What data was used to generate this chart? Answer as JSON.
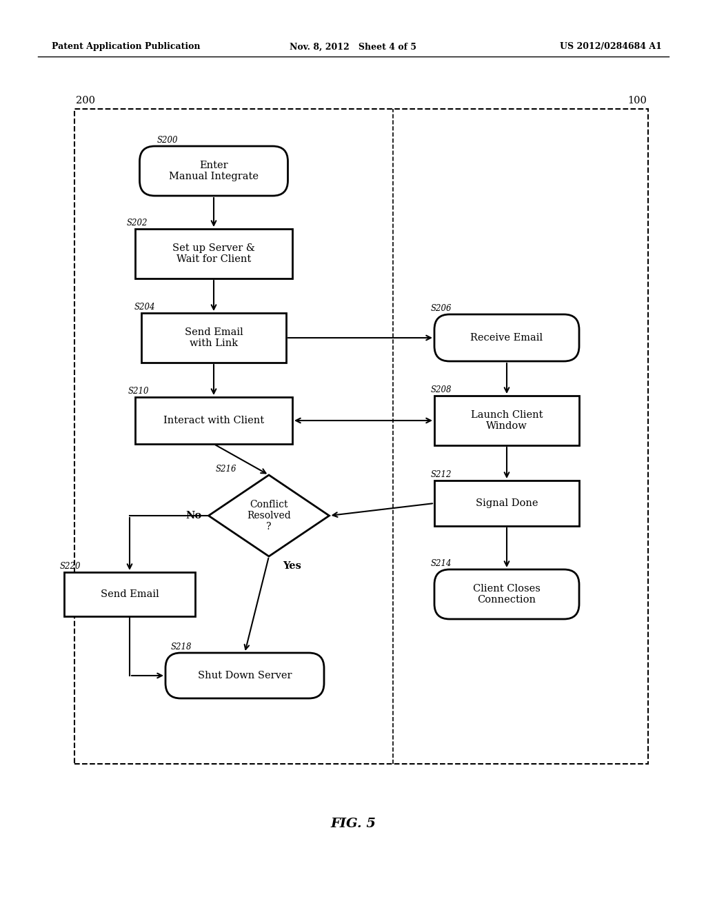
{
  "header_left": "Patent Application Publication",
  "header_mid": "Nov. 8, 2012   Sheet 4 of 5",
  "header_right": "US 2012/0284684 A1",
  "fig_label": "FIG. 5",
  "background": "#ffffff"
}
